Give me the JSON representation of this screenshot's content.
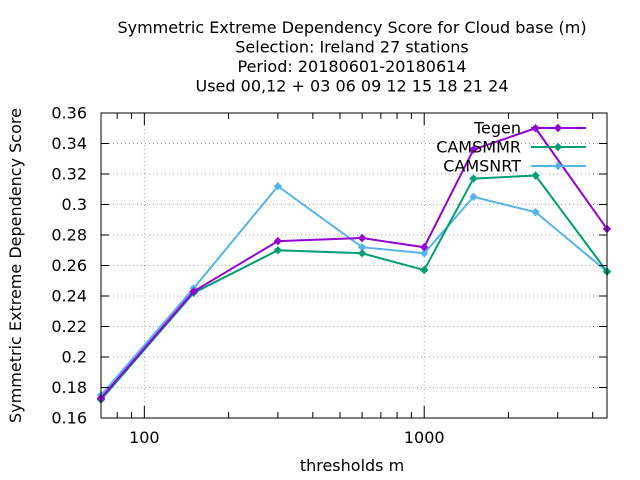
{
  "chart_data": {
    "type": "line",
    "title": [
      "Symmetric Extreme Dependency Score  for Cloud base (m)",
      "Selection: Ireland     27 stations",
      "Period: 20180601-20180614",
      "Used  00,12  + 03 06 09 12 15 18 21 24"
    ],
    "xlabel": "thresholds m",
    "ylabel": "Symmetric Extreme Dependency Score",
    "x_scale": "log",
    "xlim": [
      70,
      4500
    ],
    "ylim": [
      0.16,
      0.36
    ],
    "x_ticks": [
      100,
      1000
    ],
    "x_tick_labels": [
      "100",
      "1000"
    ],
    "y_ticks": [
      0.16,
      0.18,
      0.2,
      0.22,
      0.24,
      0.26,
      0.28,
      0.3,
      0.32,
      0.34,
      0.36
    ],
    "y_tick_labels": [
      "0.16",
      "0.18",
      "0.2",
      "0.22",
      "0.24",
      "0.26",
      "0.28",
      "0.3",
      "0.32",
      "0.34",
      "0.36"
    ],
    "x": [
      70,
      150,
      300,
      600,
      1000,
      1500,
      2500,
      4500
    ],
    "grid": true,
    "legend_position": "top-right",
    "series": [
      {
        "name": "Tegen",
        "color": "#9400d3",
        "marker": "plus-circle",
        "values": [
          0.173,
          0.243,
          0.276,
          0.278,
          0.272,
          0.336,
          0.35,
          0.284
        ]
      },
      {
        "name": "CAMSMMR",
        "color": "#009e73",
        "marker": "plus-circle",
        "values": [
          0.172,
          0.242,
          0.27,
          0.268,
          0.257,
          0.317,
          0.319,
          0.256
        ]
      },
      {
        "name": "CAMSNRT",
        "color": "#56b4e9",
        "marker": "plus-circle",
        "values": [
          0.175,
          0.245,
          0.312,
          0.272,
          0.268,
          0.305,
          0.295,
          0.256
        ]
      }
    ]
  }
}
